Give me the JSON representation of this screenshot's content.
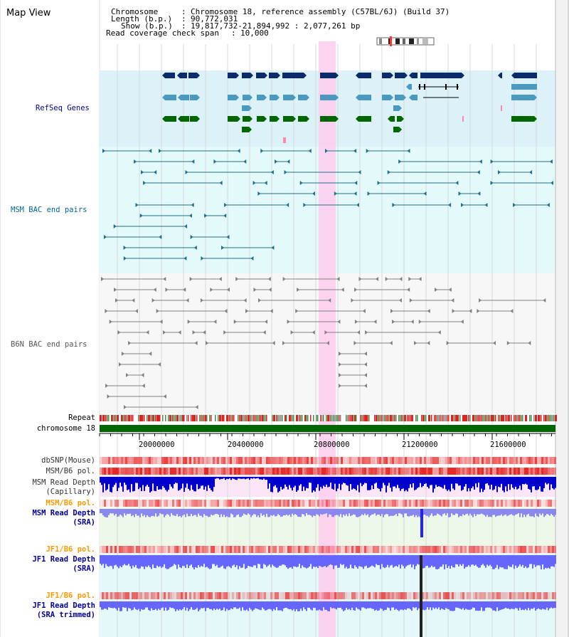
{
  "panel_title": "Map View",
  "info": {
    "chromosome_label": "Chromosome",
    "chromosome_value": "Chromosome 18, reference assembly (C57BL/6J) (Build 37)",
    "length_label": "Length (b.p.)",
    "length_value": "90,772,031",
    "show_label": "Show (b.p.)",
    "show_value": "19,817,732-21,894,992 : 2,077,261 bp",
    "span_label": "Read coverage check span",
    "span_value": "10,000"
  },
  "tracks": {
    "refseq": "RefSeq Genes",
    "msm_bac": "MSM BAC end pairs",
    "b6n_bac": "B6N BAC end pairs",
    "repeat": "Repeat",
    "chromosome": "chromosome 18",
    "dbsnp": "dbSNP(Mouse)",
    "msm_b6_pol": "MSM/B6 pol.",
    "msm_read_cap_1": "MSM Read Depth",
    "msm_read_cap_2": "(Capillary)",
    "msm_b6_pol2": "MSM/B6 pol.",
    "msm_read_sra_1": "MSM Read Depth",
    "msm_read_sra_2": "(SRA)",
    "jf1_b6_pol": "JF1/B6 pol.",
    "jf1_read_sra_1": "JF1 Read Depth",
    "jf1_read_sra_2": "(SRA)",
    "jf1_b6_pol2": "JF1/B6 pol.",
    "jf1_read_trim_1": "JF1 Read Depth",
    "jf1_read_trim_2": "(SRA trimmed)"
  },
  "axis_ticks": [
    "20000000",
    "20400000",
    "20800000",
    "21200000",
    "21600000"
  ],
  "colors": {
    "label_blue": "#000099",
    "label_teal": "#006699",
    "label_orange": "#ff9900",
    "refseq_bg": "#ddf2f8",
    "msm_bg": "#e4fafa",
    "b6n_bg": "#f7f7f7",
    "highlight": "#ffccee",
    "gene_dark": "#0b2b6b",
    "gene_mid": "#4a9ac0",
    "gene_green": "#006600",
    "bac_msm": "#1f6f8b",
    "bac_b6n": "#808080",
    "chrom_green": "#006600",
    "depth_blue": "#0000cc",
    "depth_light": "#6666ff"
  }
}
